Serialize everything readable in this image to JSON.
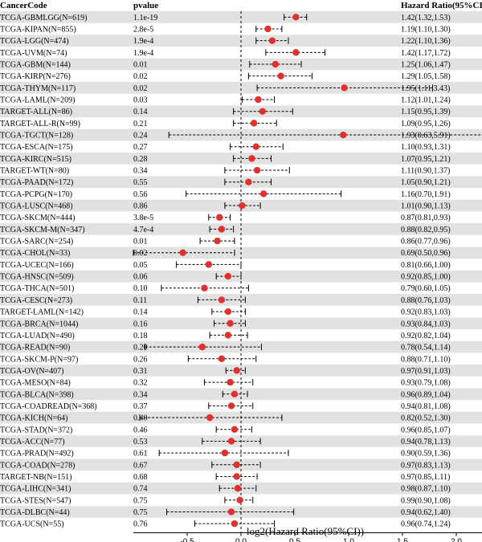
{
  "header": {
    "cancer_code": "CancerCode",
    "pvalue": "pvalue",
    "hazard_ratio": "Hazard Ratio(95%CI)"
  },
  "colors": {
    "point": "#e03131",
    "band": "#e2e2e2",
    "ci": "#000000"
  },
  "chart_data": {
    "type": "forest",
    "xlabel": "log2(Hazard Ratio(95%CI))",
    "xlim": [
      -1.0,
      2.9
    ],
    "xticks": [
      "-0.5",
      "0.0",
      "0.5",
      "1.0",
      "1.5",
      "2.0",
      "2.5"
    ],
    "rows": [
      {
        "code": "TCGA-GBMLGG(N=619)",
        "p": "1.1e-19",
        "hr": "1.42(1.32,1.53)",
        "est": 0.51,
        "lo": 0.4,
        "hi": 0.61
      },
      {
        "code": "TCGA-KIPAN(N=855)",
        "p": "2.8e-5",
        "hr": "1.19(1.10,1.30)",
        "est": 0.25,
        "lo": 0.14,
        "hi": 0.38
      },
      {
        "code": "TCGA-LGG(N=474)",
        "p": "1.9e-4",
        "hr": "1.22(1.10,1.36)",
        "est": 0.29,
        "lo": 0.14,
        "hi": 0.44
      },
      {
        "code": "TCGA-UVM(N=74)",
        "p": "1.9e-4",
        "hr": "1.42(1.17,1.72)",
        "est": 0.51,
        "lo": 0.23,
        "hi": 0.78
      },
      {
        "code": "TCGA-GBM(N=144)",
        "p": "0.01",
        "hr": "1.25(1.06,1.47)",
        "est": 0.32,
        "lo": 0.08,
        "hi": 0.56
      },
      {
        "code": "TCGA-KIRP(N=276)",
        "p": "0.02",
        "hr": "1.29(1.05,1.58)",
        "est": 0.37,
        "lo": 0.07,
        "hi": 0.66
      },
      {
        "code": "TCGA-THYM(N=117)",
        "p": "0.02",
        "hr": "1.95(1.11,3.43)",
        "est": 0.96,
        "lo": 0.15,
        "hi": 1.78
      },
      {
        "code": "TCGA-LAML(N=209)",
        "p": "0.03",
        "hr": "1.12(1.01,1.24)",
        "est": 0.16,
        "lo": 0.01,
        "hi": 0.31
      },
      {
        "code": "TARGET-ALL(N=86)",
        "p": "0.14",
        "hr": "1.15(0.95,1.39)",
        "est": 0.2,
        "lo": -0.07,
        "hi": 0.48
      },
      {
        "code": "TARGET-ALL-R(N=99)",
        "p": "0.21",
        "hr": "1.09(0.95,1.26)",
        "est": 0.12,
        "lo": -0.07,
        "hi": 0.33
      },
      {
        "code": "TCGA-TGCT(N=128)",
        "p": "0.24",
        "hr": "1.93(0.63,5.91)",
        "est": 0.95,
        "lo": -0.67,
        "hi": 2.56
      },
      {
        "code": "TCGA-ESCA(N=175)",
        "p": "0.27",
        "hr": "1.10(0.93,1.31)",
        "est": 0.14,
        "lo": -0.1,
        "hi": 0.39
      },
      {
        "code": "TCGA-KIRC(N=515)",
        "p": "0.28",
        "hr": "1.07(0.95,1.21)",
        "est": 0.1,
        "lo": -0.07,
        "hi": 0.28
      },
      {
        "code": "TARGET-WT(N=80)",
        "p": "0.34",
        "hr": "1.11(0.90,1.37)",
        "est": 0.15,
        "lo": -0.15,
        "hi": 0.45
      },
      {
        "code": "TCGA-PAAD(N=172)",
        "p": "0.55",
        "hr": "1.05(0.90,1.21)",
        "est": 0.07,
        "lo": -0.15,
        "hi": 0.28
      },
      {
        "code": "TCGA-PCPG(N=170)",
        "p": "0.56",
        "hr": "1.16(0.70,1.91)",
        "est": 0.21,
        "lo": -0.51,
        "hi": 0.93
      },
      {
        "code": "TCGA-LUSC(N=468)",
        "p": "0.86",
        "hr": "1.01(0.90,1.13)",
        "est": 0.01,
        "lo": -0.15,
        "hi": 0.18
      },
      {
        "code": "TCGA-SKCM(N=444)",
        "p": "3.8e-5",
        "hr": "0.87(0.81,0.93)",
        "est": -0.2,
        "lo": -0.3,
        "hi": -0.1
      },
      {
        "code": "TCGA-SKCM-M(N=347)",
        "p": "4.7e-4",
        "hr": "0.88(0.82,0.95)",
        "est": -0.18,
        "lo": -0.29,
        "hi": -0.07
      },
      {
        "code": "TCGA-SARC(N=254)",
        "p": "0.01",
        "hr": "0.86(0.77,0.96)",
        "est": -0.22,
        "lo": -0.38,
        "hi": -0.06
      },
      {
        "code": "TCGA-CHOL(N=33)",
        "p": "0.02",
        "hr": "0.69(0.50,0.96)",
        "est": -0.54,
        "lo": -1.0,
        "hi": -0.06
      },
      {
        "code": "TCGA-UCEC(N=166)",
        "p": "0.05",
        "hr": "0.81(0.66,1.00)",
        "est": -0.3,
        "lo": -0.6,
        "hi": 0.0
      },
      {
        "code": "TCGA-HNSC(N=509)",
        "p": "0.06",
        "hr": "0.92(0.85,1.00)",
        "est": -0.12,
        "lo": -0.23,
        "hi": 0.0
      },
      {
        "code": "TCGA-THCA(N=501)",
        "p": "0.10",
        "hr": "0.79(0.60,1.05)",
        "est": -0.34,
        "lo": -0.74,
        "hi": 0.07
      },
      {
        "code": "TCGA-CESC(N=273)",
        "p": "0.11",
        "hr": "0.88(0.76,1.03)",
        "est": -0.18,
        "lo": -0.4,
        "hi": 0.04
      },
      {
        "code": "TARGET-LAML(N=142)",
        "p": "0.14",
        "hr": "0.92(0.83,1.03)",
        "est": -0.12,
        "lo": -0.27,
        "hi": 0.04
      },
      {
        "code": "TCGA-BRCA(N=1044)",
        "p": "0.16",
        "hr": "0.93(0.84,1.03)",
        "est": -0.1,
        "lo": -0.25,
        "hi": 0.04
      },
      {
        "code": "TCGA-LUAD(N=490)",
        "p": "0.18",
        "hr": "0.92(0.82,1.04)",
        "est": -0.12,
        "lo": -0.29,
        "hi": 0.06
      },
      {
        "code": "TCGA-READ(N=90)",
        "p": "0.20",
        "hr": "0.78(0.54,1.14)",
        "est": -0.36,
        "lo": -0.89,
        "hi": 0.19
      },
      {
        "code": "TCGA-SKCM-P(N=97)",
        "p": "0.26",
        "hr": "0.88(0.71,1.10)",
        "est": -0.18,
        "lo": -0.49,
        "hi": 0.14
      },
      {
        "code": "TCGA-OV(N=407)",
        "p": "0.31",
        "hr": "0.97(0.91,1.03)",
        "est": -0.04,
        "lo": -0.14,
        "hi": 0.04
      },
      {
        "code": "TCGA-MESO(N=84)",
        "p": "0.32",
        "hr": "0.93(0.79,1.08)",
        "est": -0.1,
        "lo": -0.34,
        "hi": 0.11
      },
      {
        "code": "TCGA-BLCA(N=398)",
        "p": "0.34",
        "hr": "0.96(0.89,1.04)",
        "est": -0.06,
        "lo": -0.17,
        "hi": 0.06
      },
      {
        "code": "TCGA-COADREAD(N=368)",
        "p": "0.37",
        "hr": "0.94(0.81,1.08)",
        "est": -0.09,
        "lo": -0.3,
        "hi": 0.11
      },
      {
        "code": "TCGA-KICH(N=64)",
        "p": "0.40",
        "hr": "0.82(0.52,1.30)",
        "est": -0.29,
        "lo": -0.94,
        "hi": 0.38
      },
      {
        "code": "TCGA-STAD(N=372)",
        "p": "0.46",
        "hr": "0.96(0.85,1.07)",
        "est": -0.06,
        "lo": -0.23,
        "hi": 0.1
      },
      {
        "code": "TCGA-ACC(N=77)",
        "p": "0.53",
        "hr": "0.94(0.78,1.13)",
        "est": -0.09,
        "lo": -0.36,
        "hi": 0.18
      },
      {
        "code": "TCGA-PRAD(N=492)",
        "p": "0.61",
        "hr": "0.90(0.59,1.36)",
        "est": -0.15,
        "lo": -0.76,
        "hi": 0.44
      },
      {
        "code": "TCGA-COAD(N=278)",
        "p": "0.67",
        "hr": "0.97(0.83,1.13)",
        "est": -0.04,
        "lo": -0.27,
        "hi": 0.18
      },
      {
        "code": "TARGET-NB(N=151)",
        "p": "0.68",
        "hr": "0.97(0.85,1.11)",
        "est": -0.04,
        "lo": -0.23,
        "hi": 0.15
      },
      {
        "code": "TCGA-LIHC(N=341)",
        "p": "0.74",
        "hr": "0.98(0.87,1.10)",
        "est": -0.03,
        "lo": -0.2,
        "hi": 0.14
      },
      {
        "code": "TCGA-STES(N=547)",
        "p": "0.75",
        "hr": "0.99(0.90,1.08)",
        "est": -0.01,
        "lo": -0.15,
        "hi": 0.11
      },
      {
        "code": "TCGA-DLBC(N=44)",
        "p": "0.75",
        "hr": "0.94(0.62,1.40)",
        "est": -0.09,
        "lo": -0.69,
        "hi": 0.49
      },
      {
        "code": "TCGA-UCS(N=55)",
        "p": "0.76",
        "hr": "0.96(0.74,1.24)",
        "est": -0.06,
        "lo": -0.43,
        "hi": 0.31
      }
    ]
  }
}
